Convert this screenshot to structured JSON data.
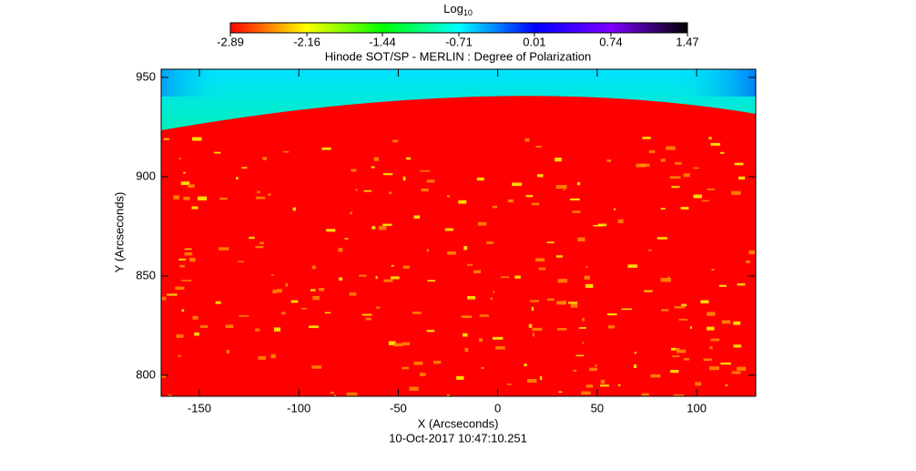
{
  "chart_data": {
    "type": "heatmap",
    "title": "Hinode SOT/SP - MERLIN : Degree of Polarization",
    "x_label": "X (Arcseconds)",
    "y_label": "Y (Arcseconds)",
    "footer": "10-Oct-2017 10:47:10.251",
    "xlim": [
      -169.2,
      129.7
    ],
    "xticks": [
      -150,
      -100,
      -50,
      0,
      50,
      100
    ],
    "ylim": [
      789.4,
      954.1
    ],
    "yticks": [
      800,
      850,
      900,
      950
    ],
    "colorbar": {
      "label": "Log",
      "label_sub": "10",
      "lim": [
        -2.89,
        1.47
      ],
      "ticks": [
        -2.89,
        -2.16,
        -1.44,
        -0.71,
        0.01,
        0.74,
        1.47
      ],
      "colors": [
        "#ff0000",
        "#ffff00",
        "#00ff00",
        "#00ffff",
        "#0000ff",
        "#7f00ff",
        "#000000"
      ]
    }
  }
}
